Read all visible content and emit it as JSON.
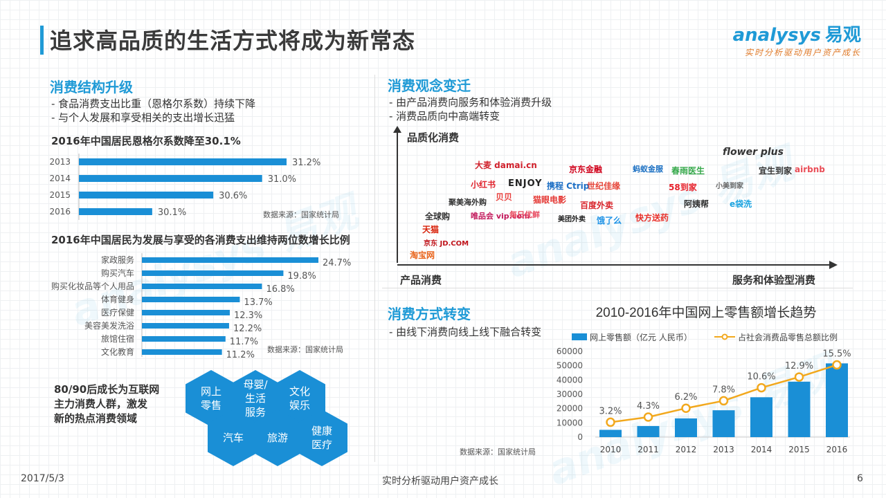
{
  "header": {
    "title": "追求高品质的生活方式将成为新常态",
    "logo_main": "analysys",
    "logo_cn": "易观",
    "logo_tagline": "实时分析驱动用户资产成长"
  },
  "left": {
    "section_title": "消费结构升级",
    "bullets": [
      "-  食品消费支出比重（恩格尔系数）持续下降",
      "-  与个人发展和享受相关的支出增长迅猛"
    ],
    "engel_title": "2016年中国居民恩格尔系数降至30.1%",
    "engel_source": "数据来源：国家统计局",
    "growth_title": "2016年中国居民为发展与享受的各消费支出维持两位数增长比例",
    "growth_source": "数据来源：国家统计局",
    "consumer_text": "80/90后成长为互联网\n主力消费人群，激发\n新的热点消费领域",
    "hexes": [
      "网上\n零售",
      "母婴/\n生活\n服务",
      "文化\n娱乐",
      "汽车",
      "旅游",
      "健康\n医疗"
    ]
  },
  "right_top": {
    "section_title": "消费观念变迁",
    "bullets": [
      "-  由产品消费向服务和体验消费升级",
      "-  消费品质向中高端转变"
    ],
    "y_label": "品质化消费",
    "x_left": "产品消费",
    "x_right": "服务和体验型消费",
    "brands": [
      "淘宝网",
      "京东 JD.COM",
      "天猫",
      "全球购",
      "唯品会 vip.com",
      "聚美海外购",
      "小红书",
      "贝贝",
      "每日优鲜",
      "大麦 damai.cn",
      "ENJOY",
      "携程 Ctrip",
      "猫眼电影",
      "京东金融",
      "世纪佳缘",
      "美团外卖",
      "百度外卖",
      "饿了么",
      "快方送药",
      "蚂蚁金服",
      "春雨医生",
      "58到家",
      "阿姨帮",
      "e袋洗",
      "flower plus",
      "宜生到家",
      "airbnb",
      "小美到家"
    ]
  },
  "right_bottom": {
    "section_title": "消费方式转变",
    "bullets": [
      "-  由线下消费向线上线下融合转变"
    ],
    "source": "数据来源：国家统计局"
  },
  "colors": {
    "accent": "#1f9ad6",
    "bar": "#1a8fd6",
    "line": "#f2a81d"
  },
  "footer": {
    "date": "2017/5/3",
    "tagline": "实时分析驱动用户资产成长",
    "page": "6"
  },
  "chart_data": [
    {
      "type": "bar",
      "orientation": "horizontal",
      "title": "2016年中国居民恩格尔系数降至30.1%",
      "categories": [
        "2013",
        "2014",
        "2015",
        "2016"
      ],
      "values": [
        31.2,
        31.0,
        30.6,
        30.1
      ],
      "labels": [
        "31.2%",
        "31.0%",
        "30.6%",
        "30.1%"
      ]
    },
    {
      "type": "bar",
      "orientation": "horizontal",
      "title": "2016年中国居民为发展与享受的各消费支出维持两位数增长比例",
      "categories": [
        "家政服务",
        "购买汽车",
        "购买化妆品等个人用品",
        "体育健身",
        "医疗保健",
        "美容美发洗浴",
        "旅馆住宿",
        "文化教育"
      ],
      "values": [
        24.7,
        19.8,
        16.8,
        13.7,
        12.3,
        12.2,
        11.7,
        11.2
      ],
      "labels": [
        "24.7%",
        "19.8%",
        "16.8%",
        "13.7%",
        "12.3%",
        "12.2%",
        "11.7%",
        "11.2%"
      ]
    },
    {
      "type": "bar",
      "title": "2010-2016年中国网上零售额增长趋势",
      "categories": [
        "2010",
        "2011",
        "2012",
        "2013",
        "2014",
        "2015",
        "2016"
      ],
      "series": [
        {
          "name": "网上零售额（亿元 人民币）",
          "type": "bar",
          "values": [
            5100,
            7800,
            13100,
            18800,
            27900,
            38800,
            51600
          ]
        },
        {
          "name": "占社会消费品零售总额比例",
          "type": "line",
          "values": [
            3.2,
            4.3,
            6.2,
            7.8,
            10.6,
            12.9,
            15.5
          ],
          "labels": [
            "3.2%",
            "4.3%",
            "6.2%",
            "7.8%",
            "10.6%",
            "12.9%",
            "15.5%"
          ]
        }
      ],
      "yticks": [
        "60000",
        "50000",
        "40000",
        "30000",
        "20000",
        "10000",
        "0"
      ],
      "ylim": [
        0,
        60000
      ]
    }
  ]
}
